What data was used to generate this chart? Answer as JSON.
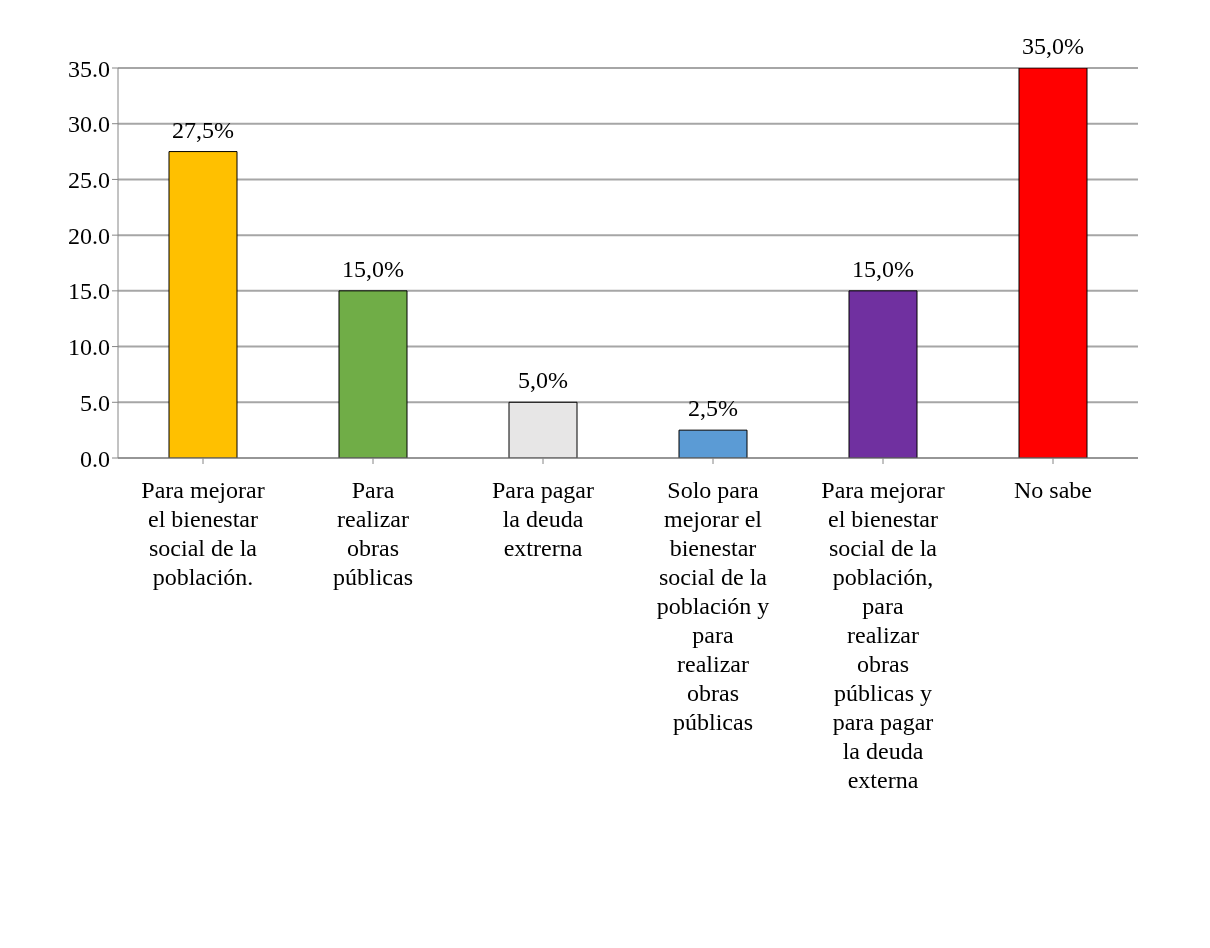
{
  "chart_data": {
    "type": "bar",
    "categories": [
      "Para mejorar el bienestar social de la población.",
      "Para realizar obras públicas",
      "Para pagar la deuda extrerna",
      "Solo para mejorar el bienestar social de la población y para realizar obras públicas",
      "Para mejorar el bienestar social de la población, para realizar obras públicas y para pagar la deuda externa",
      "No sabe"
    ],
    "values": [
      27.5,
      15,
      5,
      2.5,
      15,
      35
    ],
    "colors": [
      "#ffc000",
      "#70ad47",
      "#e7e6e6",
      "#5b9bd5",
      "#7030a0",
      "#ff0000"
    ],
    "value_labels": [
      "27,5%",
      "15,0%",
      "5,0%",
      "2,5%",
      "15,0%",
      "35,0%"
    ],
    "ylim": [
      0,
      35
    ],
    "yticks": [
      {
        "value": 0,
        "label": "0.0"
      },
      {
        "value": 5,
        "label": "5.0"
      },
      {
        "value": 10,
        "label": "10.0"
      },
      {
        "value": 15,
        "label": "15.0"
      },
      {
        "value": 20,
        "label": "20.0"
      },
      {
        "value": 25,
        "label": "25.0"
      },
      {
        "value": 30,
        "label": "30.0"
      },
      {
        "value": 35,
        "label": "35.0"
      }
    ],
    "grid": "y"
  }
}
